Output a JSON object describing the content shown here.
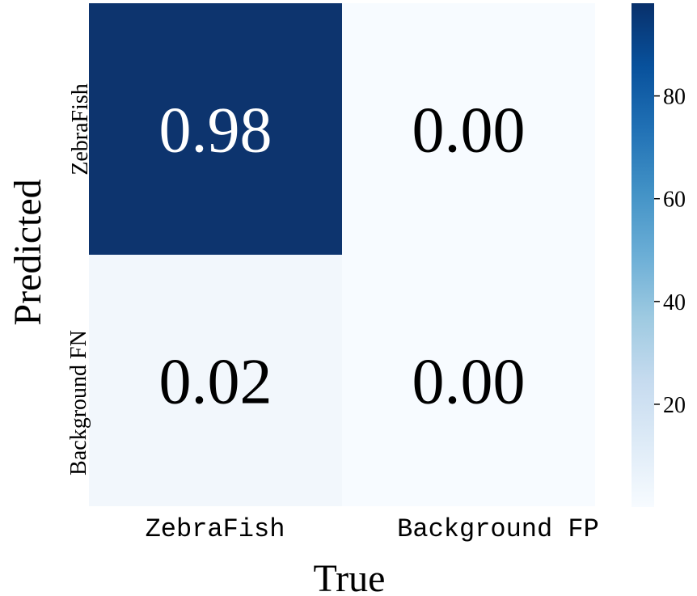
{
  "chart_data": {
    "type": "heatmap",
    "xlabel": "True",
    "ylabel": "Predicted",
    "x_categories": [
      "ZebraFish",
      "Background FP"
    ],
    "y_categories": [
      "ZebraFish",
      "Background FN"
    ],
    "values": [
      [
        0.98,
        0.0
      ],
      [
        0.02,
        0.0
      ]
    ],
    "cell_labels": [
      [
        "0.98",
        "0.00"
      ],
      [
        "0.02",
        "0.00"
      ]
    ],
    "colormap": "Blues",
    "colorbar": {
      "range": [
        0,
        100
      ],
      "ticks": [
        20,
        40,
        60,
        80
      ],
      "tick_labels": [
        "20",
        "40",
        "60",
        "80"
      ]
    },
    "colors": {
      "high": "#08306b",
      "low": "#f7fbff",
      "dark_text": "#000000",
      "light_text": "#ffffff"
    }
  }
}
